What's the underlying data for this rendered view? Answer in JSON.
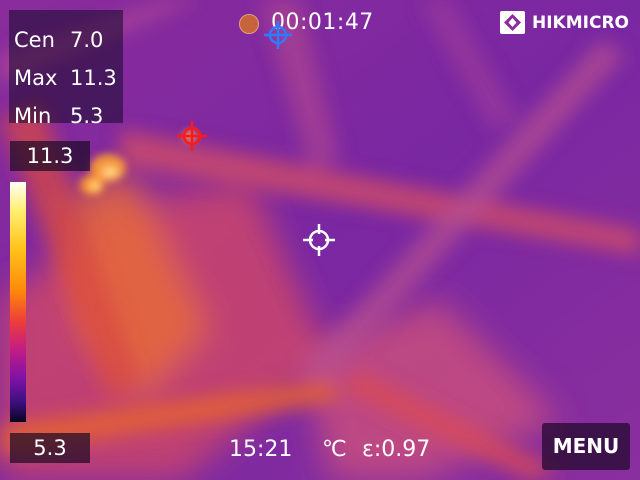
{
  "stats": {
    "cen_label": "Cen",
    "cen_value": "7.0",
    "max_label": "Max",
    "max_value": "11.3",
    "min_label": "Min",
    "min_value": "5.3"
  },
  "scale": {
    "max": "11.3",
    "min": "5.3",
    "palette": [
      "#fffff6",
      "#ffee70",
      "#ffc21a",
      "#ff8a0a",
      "#ee3d3a",
      "#c21c86",
      "#7e12a6",
      "#3a0f7c",
      "#070420"
    ]
  },
  "recording": {
    "time": "00:01:47",
    "dot_color": "#c7643e"
  },
  "brand": {
    "name": "HIKMICRO"
  },
  "status": {
    "clock": "15:21",
    "unit": "℃",
    "emissivity": "ε:0.97"
  },
  "menu": {
    "label": "MENU"
  },
  "cursors": {
    "hot_color": "#ff1a1a",
    "cold_color": "#2f7bff",
    "center_color": "#ffffff"
  }
}
